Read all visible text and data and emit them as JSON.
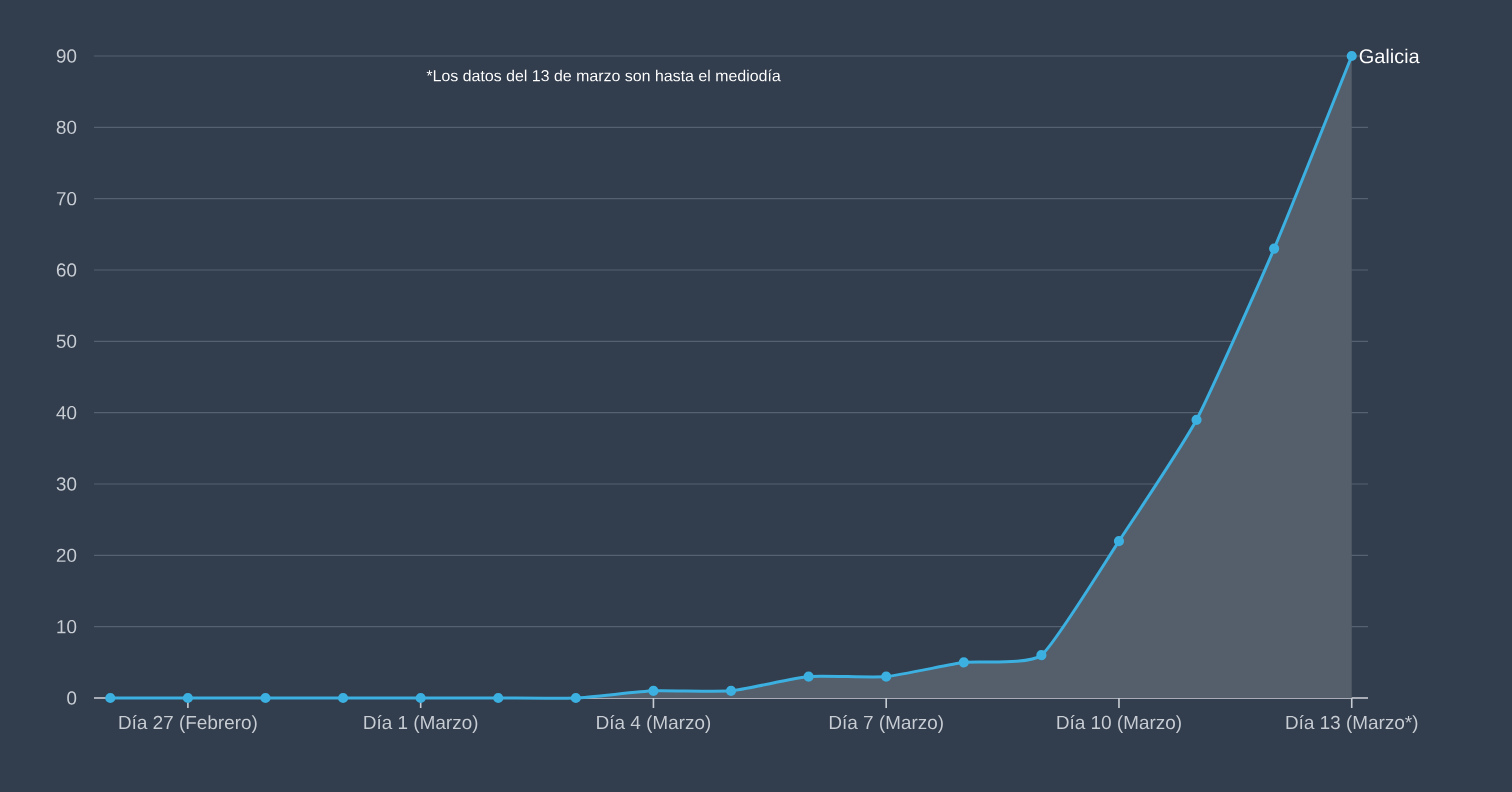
{
  "chart_data": {
    "type": "area",
    "annotations": [
      "*Los datos del 13 de marzo son hasta el mediodía"
    ],
    "categories": [
      null,
      "Día 27 (Febrero)",
      null,
      null,
      "Día 1 (Marzo)",
      null,
      null,
      "Día 4 (Marzo)",
      null,
      null,
      "Día 7 (Marzo)",
      null,
      null,
      "Día 10 (Marzo)",
      null,
      null,
      "Día 13 (Marzo*)"
    ],
    "series": [
      {
        "name": "Galicia",
        "color": "#3cb0e0",
        "values": [
          0,
          0,
          0,
          0,
          0,
          0,
          0,
          1,
          1,
          3,
          3,
          5,
          6,
          22,
          39,
          63,
          90
        ]
      }
    ],
    "ylim": [
      0,
      90
    ],
    "yticks": [
      0,
      10,
      20,
      30,
      40,
      50,
      60,
      70,
      80,
      90
    ],
    "grid": "y",
    "marker": "circle",
    "legend": false
  }
}
